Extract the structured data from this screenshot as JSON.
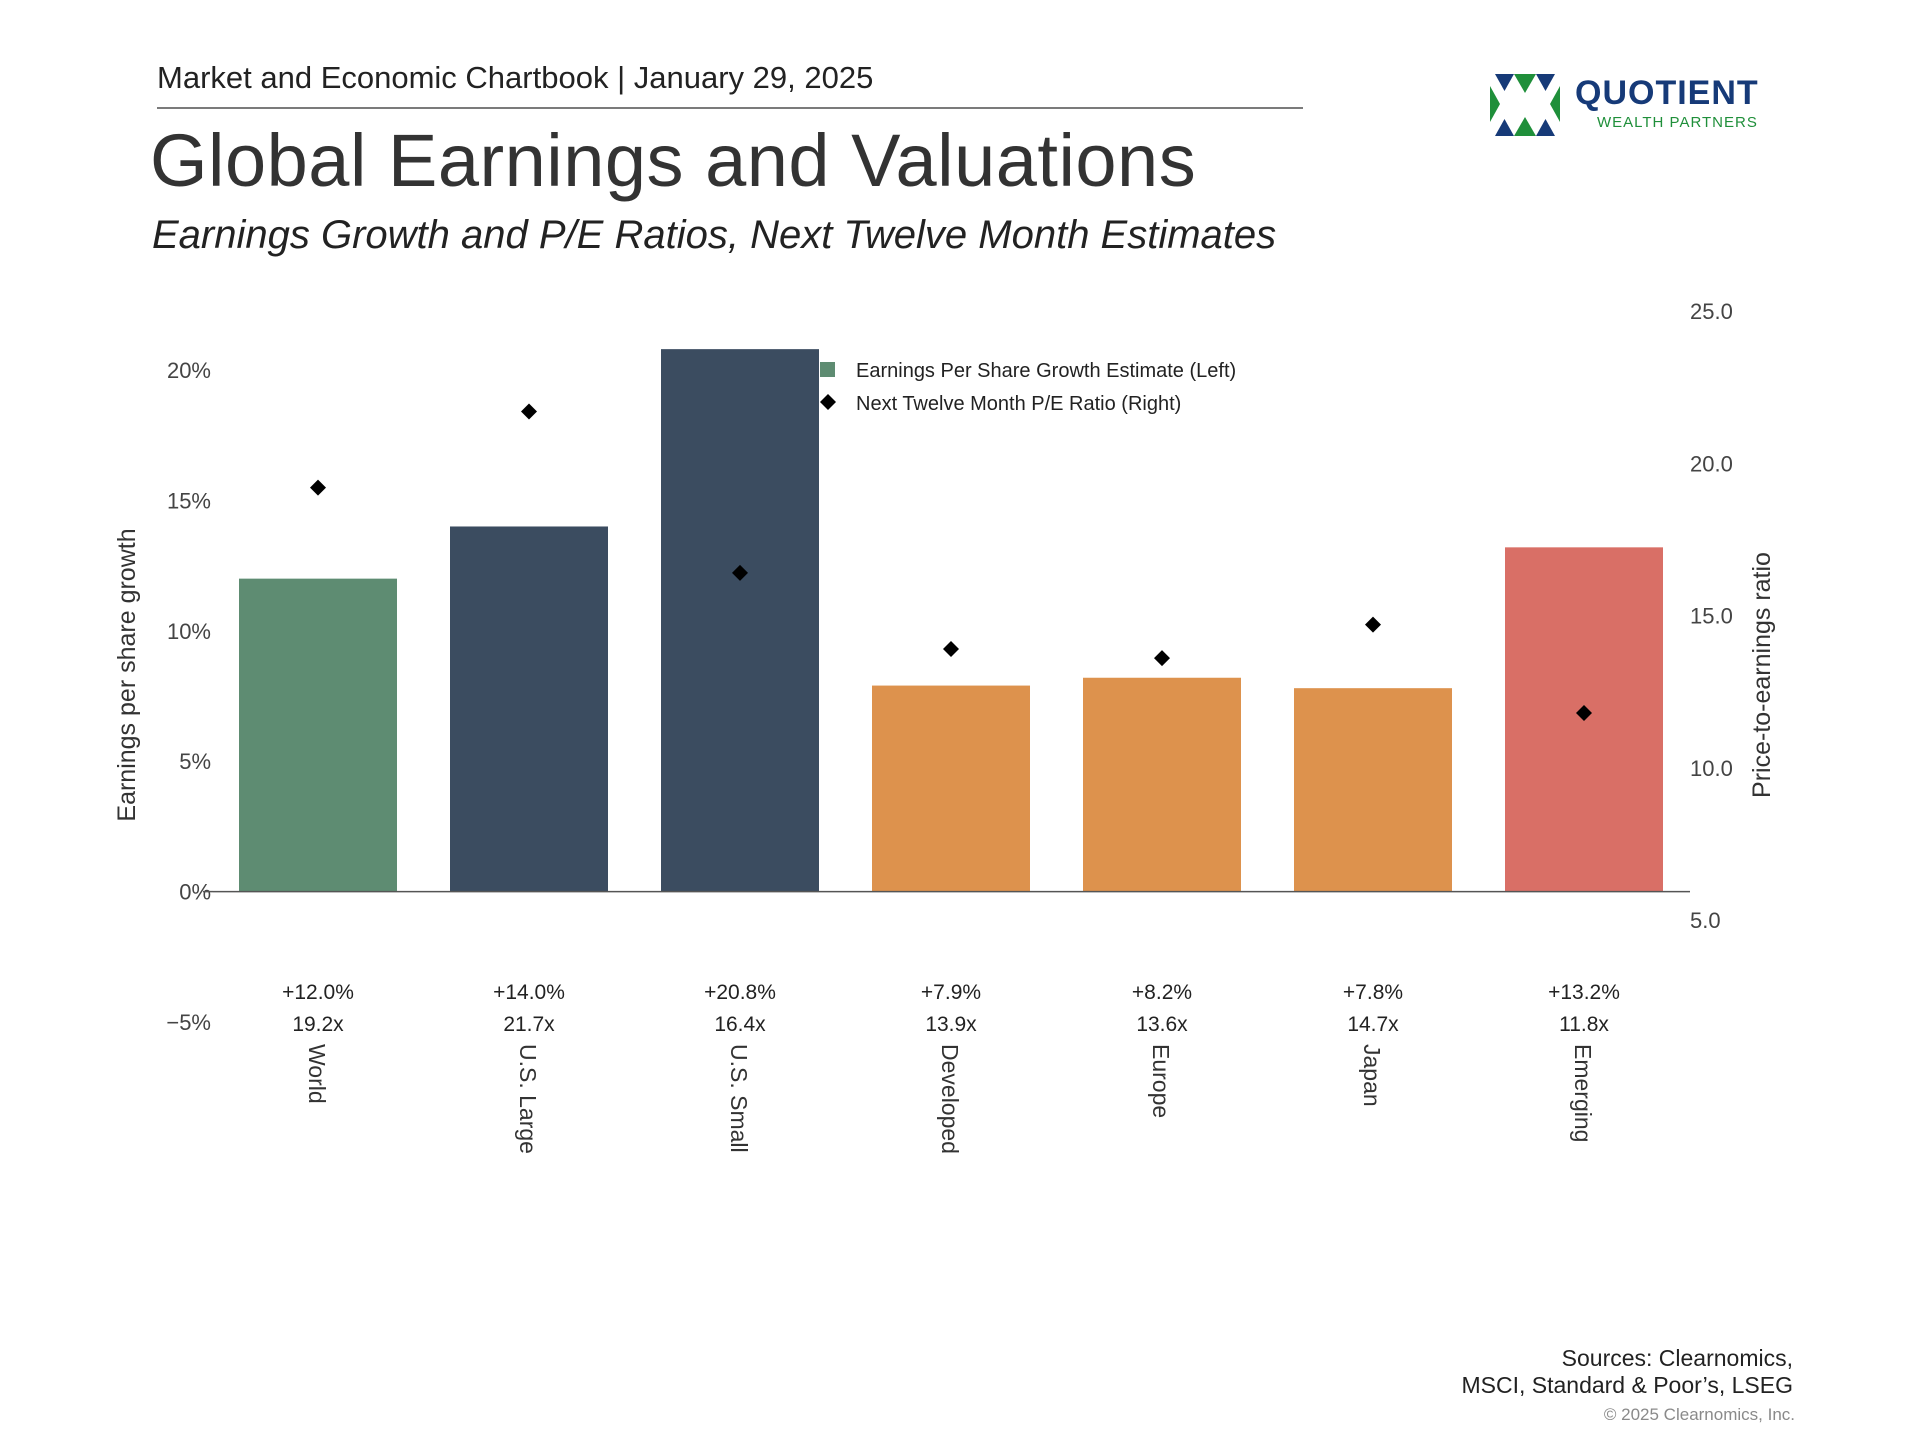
{
  "header": {
    "publication": "Market and Economic Chartbook",
    "separator": "|",
    "date": "January 29, 2025"
  },
  "title": "Global Earnings and Valuations",
  "subtitle": "Earnings Growth and P/E Ratios, Next Twelve Month Estimates",
  "logo": {
    "name": "QUOTIENT",
    "tagline": "WEALTH PARTNERS",
    "icon": "quotient-logo-icon",
    "colors": {
      "navy": "#163a78",
      "green": "#1f8f3a"
    }
  },
  "chart_data": {
    "type": "bar",
    "categories": [
      "World",
      "U.S. Large",
      "U.S. Small",
      "Developed",
      "Europe",
      "Japan",
      "Emerging"
    ],
    "series": [
      {
        "name": "Earnings Per Share Growth Estimate (Left)",
        "axis": "left",
        "mark": "bar",
        "values": [
          12.0,
          14.0,
          20.8,
          7.9,
          8.2,
          7.8,
          13.2
        ],
        "labels": [
          "+12.0%",
          "+14.0%",
          "+20.8%",
          "+7.9%",
          "+8.2%",
          "+7.8%",
          "+13.2%"
        ],
        "colors": [
          "#5e8c72",
          "#3b4c60",
          "#3b4c60",
          "#dd924d",
          "#dd924d",
          "#dd924d",
          "#d96f66"
        ]
      },
      {
        "name": "Next Twelve Month P/E Ratio (Right)",
        "axis": "right",
        "mark": "diamond",
        "values": [
          19.2,
          21.7,
          16.4,
          13.9,
          13.6,
          14.7,
          11.8
        ],
        "labels": [
          "19.2x",
          "21.7x",
          "16.4x",
          "13.9x",
          "13.6x",
          "14.7x",
          "11.8x"
        ],
        "color": "#000000"
      }
    ],
    "left_axis": {
      "label": "Earnings per share growth",
      "ylim": [
        -5,
        20
      ],
      "ticks": [
        20,
        15,
        10,
        5,
        0,
        -5
      ],
      "tick_labels": [
        "20%",
        "15%",
        "10%",
        "5%",
        "0%",
        "−5%"
      ]
    },
    "right_axis": {
      "label": "Price-to-earnings ratio",
      "ylim": [
        5,
        25
      ],
      "ticks": [
        25,
        20,
        15,
        10,
        5
      ],
      "tick_labels": [
        "25.0",
        "20.0",
        "15.0",
        "10.0",
        "5.0"
      ]
    },
    "legend": {
      "placement": "top-center",
      "entries": [
        "Earnings Per Share Growth Estimate (Left)",
        "Next Twelve Month P/E Ratio (Right)"
      ],
      "swatch_color": "#5e8c72"
    },
    "grid": false
  },
  "footer": {
    "sources_line1": "Sources: Clearnomics,",
    "sources_line2": "MSCI, Standard & Poor’s, LSEG",
    "copyright": "© 2025 Clearnomics, Inc."
  }
}
